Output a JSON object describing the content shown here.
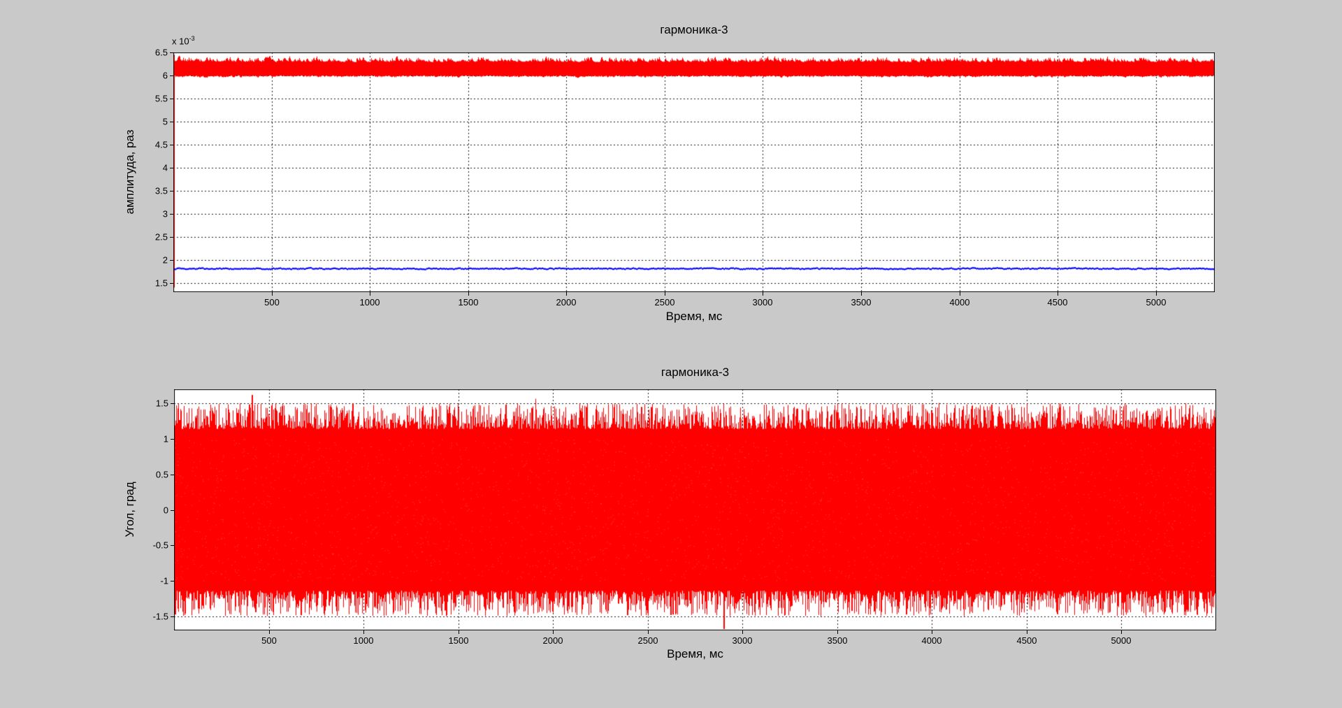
{
  "figure": {
    "background_color": "#c9c9c9",
    "plot_background": "#ffffff",
    "axis_color": "#000000",
    "grid_color": "#000000",
    "grid_style": "dotted"
  },
  "chart_data": [
    {
      "type": "line",
      "title": "гармоника-3",
      "xlabel": "Время, мс",
      "ylabel": "амплитуда, раз",
      "exp_base": "x 10",
      "exp_power": "-3",
      "y_unit_scale": "1e-3",
      "xlim": [
        0,
        5300
      ],
      "ylim": [
        1.3,
        6.5
      ],
      "xticks": [
        500,
        1000,
        1500,
        2000,
        2500,
        3000,
        3500,
        4000,
        4500,
        5000
      ],
      "yticks": [
        1.5,
        2,
        2.5,
        3,
        3.5,
        4,
        4.5,
        5,
        5.5,
        6,
        6.5
      ],
      "grid": true,
      "legend": null,
      "series": [
        {
          "name": "red-noise-band",
          "color": "#ff0000",
          "style": "dense-noise-band",
          "mean": 6.15,
          "core": [
            6.0,
            6.29
          ],
          "extremes": [
            5.94,
            6.45
          ],
          "initial_transient": {
            "x": 0,
            "from": 6.45,
            "to": 1.4
          }
        },
        {
          "name": "blue-flat-line",
          "color": "#0000ff",
          "style": "noisy-line",
          "mean": 1.81,
          "range": [
            1.79,
            1.84
          ]
        }
      ]
    },
    {
      "type": "line",
      "title": "гармоника-3",
      "xlabel": "Время, мс",
      "ylabel": "Угол, град",
      "xlim": [
        0,
        5500
      ],
      "ylim": [
        -1.7,
        1.7
      ],
      "xticks": [
        500,
        1000,
        1500,
        2000,
        2500,
        3000,
        3500,
        4000,
        4500,
        5000
      ],
      "yticks": [
        -1.5,
        -1,
        -0.5,
        0,
        0.5,
        1,
        1.5
      ],
      "grid": true,
      "legend": null,
      "series": [
        {
          "name": "red-angle-noise",
          "color": "#ff0000",
          "style": "dense-noise-fill",
          "mean": 0,
          "solid_envelope": [
            -1.14,
            1.14
          ],
          "typical_extremes": [
            -1.5,
            1.5
          ],
          "notable_spikes": [
            {
              "t": 410,
              "v": 1.62
            },
            {
              "t": 2900,
              "v": -1.68
            }
          ]
        }
      ]
    }
  ]
}
